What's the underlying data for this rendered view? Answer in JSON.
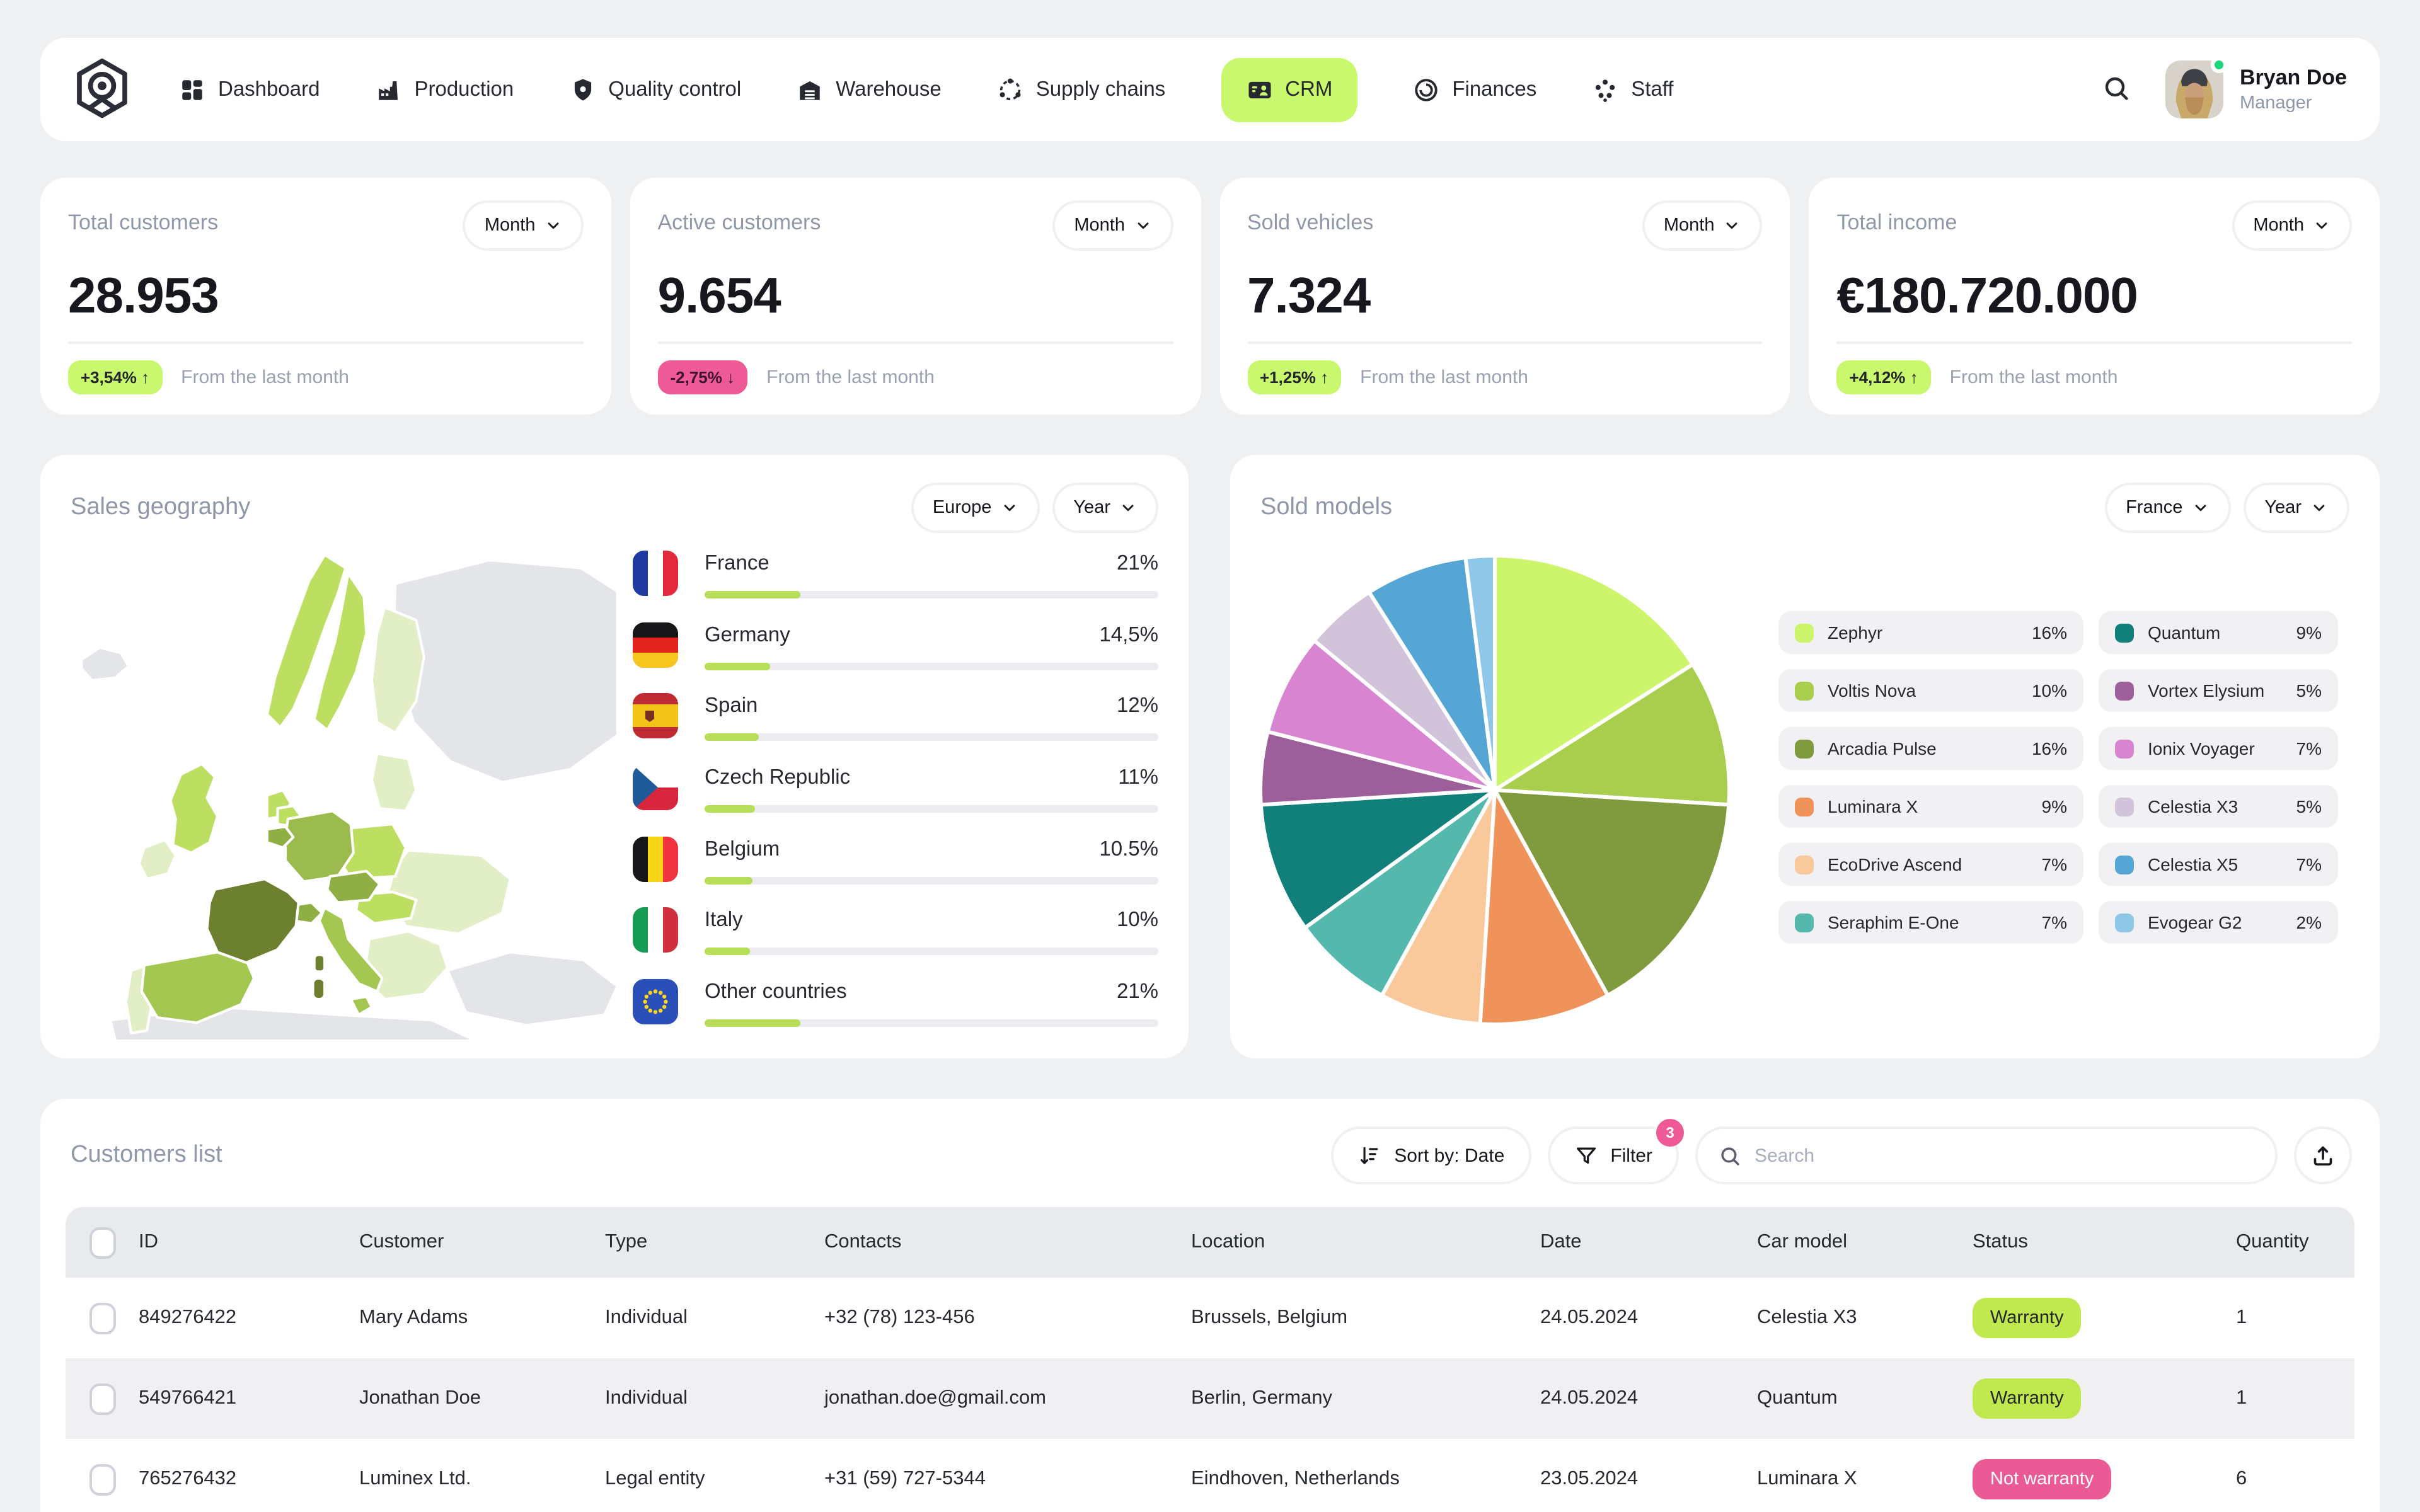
{
  "colors": {
    "accent_lime": "#c9f76d",
    "bar_lime": "#b7de58",
    "pink": "#ee5a95",
    "title_gray": "#8f97a9",
    "text_dark": "#16181d",
    "table_header_bg": "#e9eaee"
  },
  "nav": {
    "items": [
      {
        "label": "Dashboard",
        "icon": "dashboard-grid",
        "active": false
      },
      {
        "label": "Production",
        "icon": "factory",
        "active": false
      },
      {
        "label": "Quality control",
        "icon": "shield-check",
        "active": false
      },
      {
        "label": "Warehouse",
        "icon": "warehouse",
        "active": false
      },
      {
        "label": "Supply chains",
        "icon": "supply-chain",
        "active": false
      },
      {
        "label": "CRM",
        "icon": "contact-card",
        "active": true
      },
      {
        "label": "Finances",
        "icon": "coin",
        "active": false
      },
      {
        "label": "Staff",
        "icon": "people",
        "active": false
      }
    ],
    "user": {
      "name": "Bryan Doe",
      "role": "Manager",
      "status": "online"
    }
  },
  "stats": [
    {
      "title": "Total customers",
      "period": "Month",
      "value": "28.953",
      "change": "+3,54%",
      "trend": "up",
      "note": "From the last month"
    },
    {
      "title": "Active customers",
      "period": "Month",
      "value": "9.654",
      "change": "-2,75%",
      "trend": "down",
      "note": "From the last month"
    },
    {
      "title": "Sold vehicles",
      "period": "Month",
      "value": "7.324",
      "change": "+1,25%",
      "trend": "up",
      "note": "From the last month"
    },
    {
      "title": "Total income",
      "period": "Month",
      "value": "€180.720.000",
      "change": "+4,12%",
      "trend": "up",
      "note": "From the last month"
    }
  ],
  "sales_geography": {
    "title": "Sales geography",
    "region_filter": "Europe",
    "period_filter": "Year",
    "countries": [
      {
        "name": "France",
        "percent": "21%",
        "value": 21,
        "flag": "fr"
      },
      {
        "name": "Germany",
        "percent": "14,5%",
        "value": 14.5,
        "flag": "de"
      },
      {
        "name": "Spain",
        "percent": "12%",
        "value": 12,
        "flag": "es"
      },
      {
        "name": "Czech Republic",
        "percent": "11%",
        "value": 11,
        "flag": "cz"
      },
      {
        "name": "Belgium",
        "percent": "10.5%",
        "value": 10.5,
        "flag": "be"
      },
      {
        "name": "Italy",
        "percent": "10%",
        "value": 10,
        "flag": "it"
      },
      {
        "name": "Other countries",
        "percent": "21%",
        "value": 21,
        "flag": "eu"
      }
    ]
  },
  "sold_models": {
    "title": "Sold models",
    "region_filter": "France",
    "period_filter": "Year",
    "chart_data": {
      "type": "pie",
      "start_angle_deg": -90,
      "direction": "clockwise",
      "legend_position": "right-two-columns",
      "series": [
        {
          "name": "Zephyr",
          "value": 16,
          "percent": "16%",
          "color": "#ccf56b"
        },
        {
          "name": "Voltis Nova",
          "value": 10,
          "percent": "10%",
          "color": "#a9ce4d"
        },
        {
          "name": "Arcadia Pulse",
          "value": 16,
          "percent": "16%",
          "color": "#7f9b3d"
        },
        {
          "name": "Luminara X",
          "value": 9,
          "percent": "9%",
          "color": "#f0935b"
        },
        {
          "name": "EcoDrive Ascend",
          "value": 7,
          "percent": "7%",
          "color": "#f9c99b"
        },
        {
          "name": "Seraphim E-One",
          "value": 7,
          "percent": "7%",
          "color": "#54b8ad"
        },
        {
          "name": "Quantum",
          "value": 9,
          "percent": "9%",
          "color": "#12807a"
        },
        {
          "name": "Vortex Elysium",
          "value": 5,
          "percent": "5%",
          "color": "#9d5f9a"
        },
        {
          "name": "Ionix Voyager",
          "value": 7,
          "percent": "7%",
          "color": "#d884d1"
        },
        {
          "name": "Celestia X3",
          "value": 5,
          "percent": "5%",
          "color": "#d1c4da"
        },
        {
          "name": "Celestia X5",
          "value": 7,
          "percent": "7%",
          "color": "#55a6d5"
        },
        {
          "name": "Evogear G2",
          "value": 2,
          "percent": "2%",
          "color": "#8fc7e9"
        }
      ]
    }
  },
  "customers": {
    "title": "Customers list",
    "toolbar": {
      "sort_label": "Sort by: Date",
      "filter_label": "Filter",
      "filter_count": "3",
      "search_placeholder": "Search"
    },
    "columns": [
      "ID",
      "Customer",
      "Type",
      "Contacts",
      "Location",
      "Date",
      "Car model",
      "Status",
      "Quantity"
    ],
    "rows": [
      {
        "id": "849276422",
        "customer": "Mary Adams",
        "type": "Individual",
        "contacts": "+32 (78) 123-456",
        "location": "Brussels, Belgium",
        "date": "24.05.2024",
        "car_model": "Celestia X3",
        "status": "Warranty",
        "status_type": "ok",
        "quantity": "1"
      },
      {
        "id": "549766421",
        "customer": "Jonathan Doe",
        "type": "Individual",
        "contacts": "jonathan.doe@gmail.com",
        "location": "Berlin, Germany",
        "date": "24.05.2024",
        "car_model": "Quantum",
        "status": "Warranty",
        "status_type": "ok",
        "quantity": "1"
      },
      {
        "id": "765276432",
        "customer": "Luminex Ltd.",
        "type": "Legal entity",
        "contacts": "+31 (59) 727-5344",
        "location": "Eindhoven, Netherlands",
        "date": "23.05.2024",
        "car_model": "Luminara X",
        "status": "Not warranty",
        "status_type": "bad",
        "quantity": "6"
      }
    ]
  }
}
